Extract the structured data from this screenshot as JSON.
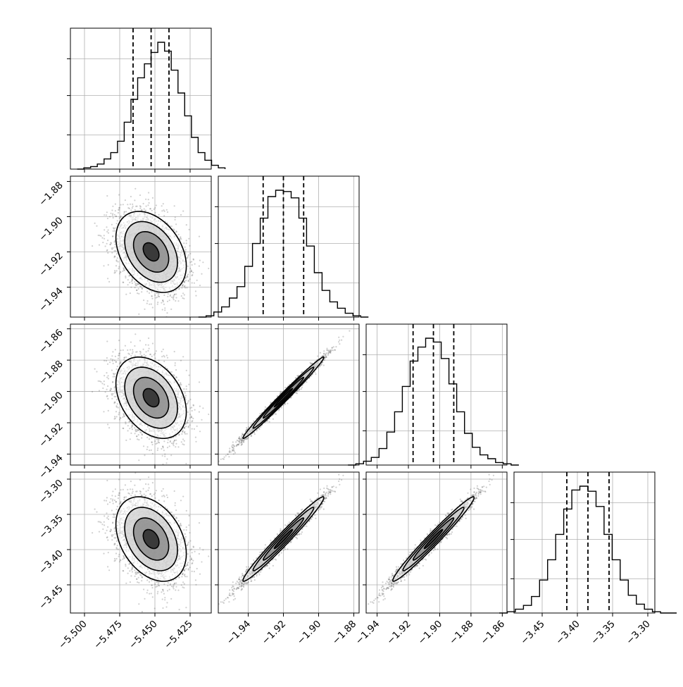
{
  "chart_data": {
    "type": "corner",
    "parameters": [
      {
        "index": 0,
        "range": [
          -5.51,
          -5.41
        ],
        "ticks": [
          -5.5,
          -5.475,
          -5.45,
          -5.425
        ],
        "tick_labels": [
          "−5.500",
          "−5.475",
          "−5.450",
          "−5.425"
        ],
        "quantiles": [
          -5.4655,
          -5.4527,
          -5.44
        ],
        "center": -5.4527,
        "sigma": 0.0125
      },
      {
        "index": 1,
        "range": [
          -1.957,
          -1.877
        ],
        "ticks": [
          -1.94,
          -1.92,
          -1.9,
          -1.88
        ],
        "tick_labels": [
          "−1.94",
          "−1.92",
          "−1.90",
          "−1.88"
        ],
        "quantiles": [
          -1.9315,
          -1.92,
          -1.9085
        ],
        "center": -1.92,
        "sigma": 0.0115
      },
      {
        "index": 2,
        "range": [
          -1.947,
          -1.857
        ],
        "ticks": [
          -1.94,
          -1.92,
          -1.9,
          -1.88,
          -1.86
        ],
        "tick_labels": [
          "−1.94",
          "−1.92",
          "−1.90",
          "−1.88",
          "−1.86"
        ],
        "quantiles": [
          -1.917,
          -1.904,
          -1.891
        ],
        "center": -1.904,
        "sigma": 0.013
      },
      {
        "index": 3,
        "range": [
          -3.49,
          -3.29
        ],
        "ticks": [
          -3.45,
          -3.4,
          -3.35,
          -3.3
        ],
        "tick_labels": [
          "−3.45",
          "−3.40",
          "−3.35",
          "−3.30"
        ],
        "quantiles": [
          -3.415,
          -3.385,
          -3.355
        ],
        "center": -3.385,
        "sigma": 0.03
      }
    ],
    "correlations": {
      "0-1": -0.35,
      "0-2": -0.35,
      "0-3": -0.35,
      "1-2": 0.99,
      "1-3": 0.98,
      "2-3": 0.98
    },
    "histograms": [
      [
        0.0,
        0.01,
        0.02,
        0.04,
        0.08,
        0.13,
        0.22,
        0.37,
        0.55,
        0.72,
        0.83,
        0.92,
        1.0,
        0.93,
        0.78,
        0.6,
        0.42,
        0.25,
        0.13,
        0.07,
        0.03,
        0.01
      ],
      [
        0.0,
        0.01,
        0.04,
        0.08,
        0.15,
        0.24,
        0.4,
        0.58,
        0.78,
        0.95,
        1.0,
        0.99,
        0.94,
        0.78,
        0.56,
        0.35,
        0.21,
        0.12,
        0.07,
        0.03,
        0.01,
        0.0
      ],
      [
        0.0,
        0.01,
        0.03,
        0.06,
        0.13,
        0.26,
        0.42,
        0.62,
        0.82,
        0.93,
        1.0,
        0.97,
        0.84,
        0.64,
        0.42,
        0.25,
        0.14,
        0.08,
        0.05,
        0.02,
        0.01,
        0.0
      ],
      [
        0.0,
        0.01,
        0.03,
        0.06,
        0.13,
        0.26,
        0.42,
        0.62,
        0.82,
        0.97,
        1.0,
        0.96,
        0.84,
        0.62,
        0.42,
        0.26,
        0.14,
        0.07,
        0.03,
        0.01,
        0.0,
        0.0
      ]
    ],
    "title": "",
    "xlabel": "",
    "ylabel": "",
    "grid": true
  }
}
